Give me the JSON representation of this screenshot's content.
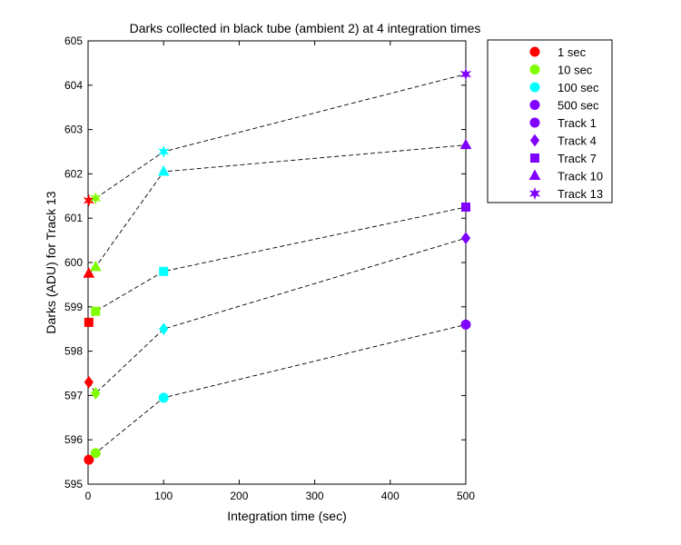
{
  "chart_data": {
    "type": "scatter",
    "title": "Darks collected in black tube (ambient 2) at 4 integration times",
    "xlabel": "Integration time (sec)",
    "ylabel": "Darks (ADU) for Track 13",
    "xlim": [
      0,
      500
    ],
    "ylim": [
      595,
      605
    ],
    "xticks": [
      0,
      100,
      200,
      300,
      400,
      500
    ],
    "yticks": [
      595,
      596,
      597,
      598,
      599,
      600,
      601,
      602,
      603,
      604,
      605
    ],
    "grid": false,
    "legend_position": "outside-right",
    "integration_times": [
      {
        "name": "1 sec",
        "x": 1,
        "color": "#ff0000"
      },
      {
        "name": "10 sec",
        "x": 10,
        "color": "#80ff00"
      },
      {
        "name": "100 sec",
        "x": 100,
        "color": "#00ffff"
      },
      {
        "name": "500 sec",
        "x": 500,
        "color": "#8000ff"
      }
    ],
    "series": [
      {
        "name": "Track 1",
        "marker": "circle",
        "x": [
          1,
          10,
          100,
          500
        ],
        "values": [
          595.55,
          595.7,
          596.95,
          598.6
        ]
      },
      {
        "name": "Track 4",
        "marker": "diamond",
        "x": [
          1,
          10,
          100,
          500
        ],
        "values": [
          597.3,
          597.05,
          598.5,
          600.55
        ]
      },
      {
        "name": "Track 7",
        "marker": "square",
        "x": [
          1,
          10,
          100,
          500
        ],
        "values": [
          598.65,
          598.9,
          599.8,
          601.25
        ]
      },
      {
        "name": "Track 10",
        "marker": "triangle",
        "x": [
          1,
          10,
          100,
          500
        ],
        "values": [
          599.75,
          599.9,
          602.05,
          602.65
        ]
      },
      {
        "name": "Track 13",
        "marker": "star",
        "x": [
          1,
          10,
          100,
          500
        ],
        "values": [
          601.4,
          601.45,
          602.5,
          604.25
        ]
      }
    ]
  }
}
